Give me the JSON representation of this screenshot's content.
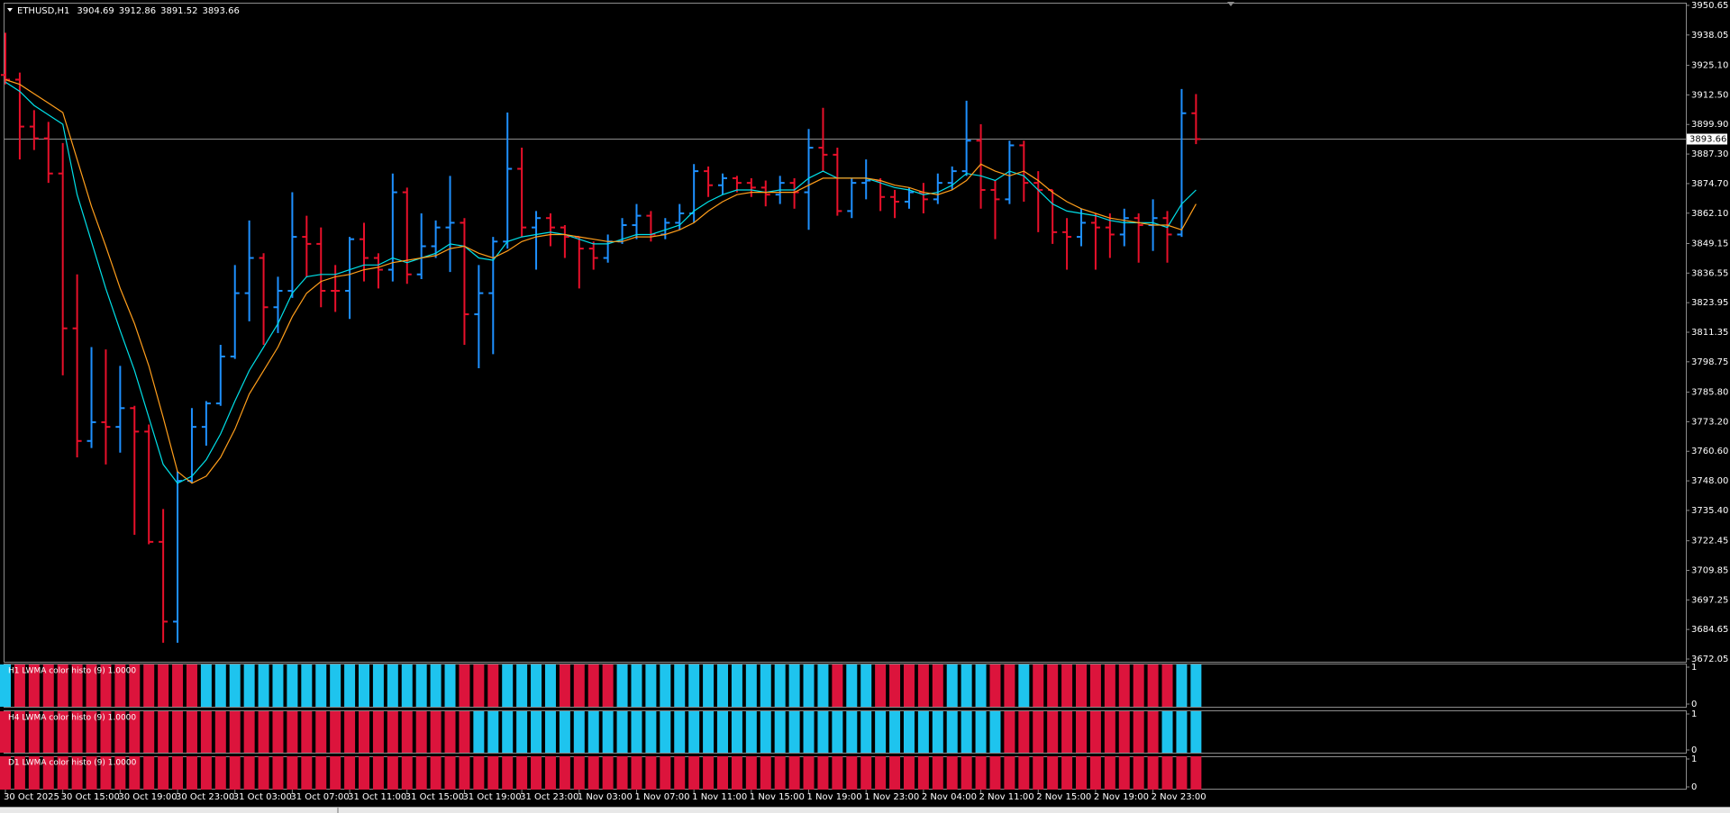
{
  "chart_data": [
    {
      "type": "ohlc",
      "title": "ETHUSD,H1",
      "categories": [
        "30 Oct 2025",
        null,
        null,
        null,
        "30 Oct 15:00",
        null,
        null,
        null,
        "30 Oct 19:00",
        null,
        null,
        null,
        "30 Oct 23:00",
        null,
        null,
        null,
        "31 Oct 03:00",
        null,
        null,
        null,
        "31 Oct 07:00",
        null,
        null,
        null,
        "31 Oct 11:00",
        null,
        null,
        null,
        "31 Oct 15:00",
        null,
        null,
        null,
        "31 Oct 19:00",
        null,
        null,
        null,
        "31 Oct 23:00",
        null,
        null,
        null,
        "1 Nov 03:00",
        null,
        null,
        null,
        "1 Nov 07:00",
        null,
        null,
        null,
        "1 Nov 11:00",
        null,
        null,
        null,
        "1 Nov 15:00",
        null,
        null,
        null,
        "1 Nov 19:00",
        null,
        null,
        null,
        "1 Nov 23:00",
        null,
        null,
        null,
        "2 Nov 04:00",
        null,
        null,
        null,
        "2 Nov 11:00",
        null,
        null,
        null,
        "2 Nov 15:00",
        null,
        null,
        null,
        "2 Nov 19:00",
        null,
        null,
        null,
        "2 Nov 23:00",
        null,
        null,
        null
      ],
      "open": [
        3921,
        3919,
        3899,
        3894,
        3879,
        3813,
        3765,
        3773,
        3771,
        3779,
        3769,
        3722,
        3688,
        3748,
        3771,
        3781,
        3801,
        3828,
        3843,
        3822,
        3829,
        3852,
        3849,
        3829,
        3829,
        3851,
        3843,
        3838,
        3871,
        3836,
        3848,
        3856,
        3858,
        3819,
        3828,
        3850,
        3881,
        3856,
        3860,
        3856,
        3852,
        3847,
        3843,
        3850,
        3857,
        3861,
        3853,
        3858,
        3862,
        3880,
        3874,
        3877,
        3875,
        3873,
        3870,
        3875,
        3871,
        3890,
        3887,
        3863,
        3875,
        3876,
        3869,
        3867,
        3871,
        3868,
        3875,
        3880,
        3893,
        3872,
        3868,
        3891,
        3875,
        3872,
        3854,
        3852,
        3858,
        3856,
        3853,
        3860,
        3857,
        3860,
        3853,
        3904.69
      ],
      "high": [
        3939,
        3922,
        3906,
        3901,
        3892,
        3836,
        3805,
        3804,
        3797,
        3780,
        3772,
        3736,
        3752,
        3779,
        3782,
        3806,
        3840,
        3859,
        3845,
        3835,
        3871,
        3861,
        3856,
        3840,
        3852,
        3858,
        3845,
        3879,
        3873,
        3862,
        3859,
        3878,
        3860,
        3840,
        3852,
        3905,
        3890,
        3863,
        3862,
        3857,
        3852,
        3850,
        3853,
        3860,
        3866,
        3863,
        3860,
        3866,
        3883,
        3882,
        3879,
        3878,
        3877,
        3876,
        3878,
        3877,
        3898,
        3907,
        3890,
        3877,
        3885,
        3877,
        3872,
        3873,
        3875,
        3879,
        3882,
        3910,
        3900,
        3876,
        3893,
        3893,
        3880,
        3872,
        3860,
        3864,
        3862,
        3862,
        3864,
        3862,
        3868,
        3863,
        3915,
        3912.86
      ],
      "low": [
        3917,
        3885,
        3889,
        3875,
        3793,
        3758,
        3762,
        3755,
        3760,
        3725,
        3721,
        3679,
        3679,
        3747,
        3763,
        3780,
        3800,
        3816,
        3806,
        3811,
        3826,
        3835,
        3822,
        3820,
        3817,
        3833,
        3830,
        3833,
        3832,
        3834,
        3843,
        3837,
        3806,
        3796,
        3802,
        3847,
        3852,
        3838,
        3848,
        3843,
        3830,
        3838,
        3841,
        3849,
        3851,
        3850,
        3851,
        3855,
        3858,
        3869,
        3870,
        3871,
        3869,
        3865,
        3866,
        3864,
        3855,
        3880,
        3861,
        3860,
        3868,
        3863,
        3860,
        3864,
        3862,
        3866,
        3872,
        3878,
        3864,
        3851,
        3866,
        3867,
        3854,
        3849,
        3838,
        3848,
        3838,
        3843,
        3848,
        3841,
        3846,
        3841,
        3852,
        3891.52
      ],
      "close": [
        3919,
        3899,
        3894,
        3879,
        3813,
        3765,
        3773,
        3771,
        3779,
        3769,
        3722,
        3688,
        3748,
        3771,
        3781,
        3801,
        3828,
        3843,
        3822,
        3829,
        3852,
        3849,
        3829,
        3829,
        3851,
        3843,
        3838,
        3871,
        3836,
        3848,
        3856,
        3858,
        3819,
        3828,
        3850,
        3881,
        3856,
        3860,
        3856,
        3852,
        3847,
        3843,
        3850,
        3857,
        3861,
        3853,
        3858,
        3862,
        3880,
        3874,
        3877,
        3875,
        3873,
        3870,
        3875,
        3871,
        3890,
        3887,
        3863,
        3875,
        3876,
        3869,
        3867,
        3871,
        3868,
        3875,
        3880,
        3893,
        3872,
        3868,
        3891,
        3875,
        3872,
        3854,
        3852,
        3858,
        3856,
        3853,
        3860,
        3857,
        3860,
        3853,
        3904.69,
        3893.66
      ],
      "up_color": "#1e90ff",
      "down_color": "#e8102a",
      "lines": [
        {
          "color": "#00e0e8",
          "values": [
            3918,
            3914,
            3908,
            3904,
            3900,
            3870,
            3850,
            3830,
            3812,
            3795,
            3775,
            3755,
            3747,
            3750,
            3757,
            3768,
            3782,
            3795,
            3805,
            3815,
            3828,
            3835,
            3836,
            3836,
            3838,
            3840,
            3840,
            3843,
            3841,
            3843,
            3845,
            3849,
            3848,
            3843,
            3842,
            3850,
            3852,
            3853,
            3854,
            3853,
            3851,
            3849,
            3849,
            3851,
            3853,
            3853,
            3855,
            3857,
            3863,
            3867,
            3870,
            3872,
            3872,
            3871,
            3872,
            3872,
            3877,
            3880,
            3877,
            3877,
            3877,
            3875,
            3873,
            3872,
            3870,
            3871,
            3874,
            3879,
            3878,
            3876,
            3880,
            3878,
            3872,
            3866,
            3863,
            3862,
            3861,
            3859,
            3858,
            3858,
            3858,
            3856,
            3866,
            3872
          ]
        },
        {
          "color": "#ff9e1b",
          "values": [
            3919,
            3917,
            3913,
            3909,
            3905,
            3885,
            3865,
            3848,
            3830,
            3815,
            3797,
            3775,
            3752,
            3747,
            3750,
            3758,
            3770,
            3785,
            3795,
            3805,
            3818,
            3828,
            3833,
            3835,
            3836,
            3838,
            3839,
            3841,
            3842,
            3843,
            3844,
            3847,
            3848,
            3845,
            3843,
            3846,
            3850,
            3852,
            3853,
            3853,
            3852,
            3851,
            3850,
            3850,
            3852,
            3852,
            3853,
            3855,
            3858,
            3863,
            3867,
            3870,
            3871,
            3871,
            3871,
            3871,
            3874,
            3877,
            3877,
            3877,
            3877,
            3876,
            3874,
            3873,
            3871,
            3870,
            3872,
            3876,
            3883,
            3880,
            3878,
            3880,
            3876,
            3871,
            3867,
            3864,
            3862,
            3860,
            3859,
            3858,
            3857,
            3857,
            3855,
            3866
          ]
        }
      ],
      "ylim": [
        3672.05,
        3950.65
      ],
      "yticks": [
        3950.65,
        3938.05,
        {
          "value": 3925.1,
          "label": "3925.10"
        },
        {
          "value": 3912.5,
          "label": "3912.50"
        },
        {
          "value": 3899.9,
          "label": "3899.90"
        },
        {
          "value": 3887.3,
          "label": "3887.30"
        },
        {
          "value": 3874.7,
          "label": "3874.70"
        },
        {
          "value": 3862.1,
          "label": "3862.10"
        },
        3849.15,
        3836.55,
        3823.95,
        3811.35,
        3798.75,
        {
          "value": 3785.8,
          "label": "3785.80"
        },
        {
          "value": 3773.2,
          "label": "3773.20"
        },
        {
          "value": 3760.6,
          "label": "3760.60"
        },
        {
          "value": 3748,
          "label": "3748.00"
        },
        {
          "value": 3735.4,
          "label": "3735.40"
        },
        3722.45,
        3709.85,
        3697.25,
        3684.65,
        3672.05
      ]
    },
    {
      "type": "colorhisto",
      "title": "H1 LWMA color histo (9) 1.0000",
      "palette": {
        "u": "#1ec4ee",
        "d": "#dc143c"
      },
      "states": [
        "u",
        "d",
        "d",
        "d",
        "d",
        "d",
        "d",
        "d",
        "d",
        "d",
        "d",
        "d",
        "d",
        "d",
        "u",
        "u",
        "u",
        "u",
        "u",
        "u",
        "u",
        "u",
        "u",
        "u",
        "u",
        "u",
        "u",
        "u",
        "u",
        "u",
        "u",
        "u",
        "d",
        "d",
        "d",
        "u",
        "u",
        "u",
        "u",
        "d",
        "d",
        "d",
        "d",
        "u",
        "u",
        "u",
        "u",
        "u",
        "u",
        "u",
        "u",
        "u",
        "u",
        "u",
        "u",
        "u",
        "u",
        "u",
        "d",
        "u",
        "u",
        "d",
        "d",
        "d",
        "d",
        "d",
        "u",
        "u",
        "u",
        "d",
        "d",
        "u",
        "d",
        "d",
        "d",
        "d",
        "d",
        "d",
        "d",
        "d",
        "d",
        "d",
        "u",
        "u"
      ],
      "values": [
        1,
        1,
        1,
        1,
        1,
        1,
        1,
        1,
        1,
        1,
        1,
        1,
        1,
        1,
        1,
        1,
        1,
        1,
        1,
        1,
        1,
        1,
        1,
        1,
        1,
        1,
        1,
        1,
        1,
        1,
        1,
        1,
        1,
        1,
        1,
        1,
        1,
        1,
        1,
        1,
        1,
        1,
        1,
        1,
        1,
        1,
        1,
        1,
        1,
        1,
        1,
        1,
        1,
        1,
        1,
        1,
        1,
        1,
        1,
        1,
        1,
        1,
        1,
        1,
        1,
        1,
        1,
        1,
        1,
        1,
        1,
        1,
        1,
        1,
        1,
        1,
        1,
        1,
        1,
        1,
        1,
        1,
        1,
        1
      ],
      "ylim": [
        0,
        1
      ],
      "yticks": [
        0,
        1
      ]
    },
    {
      "type": "colorhisto",
      "title": "H4 LWMA color histo (9) 1.0000",
      "palette": {
        "u": "#1ec4ee",
        "d": "#dc143c"
      },
      "states": [
        "d",
        "d",
        "d",
        "d",
        "d",
        "d",
        "d",
        "d",
        "d",
        "d",
        "d",
        "d",
        "d",
        "d",
        "d",
        "d",
        "d",
        "d",
        "d",
        "d",
        "d",
        "d",
        "d",
        "d",
        "d",
        "d",
        "d",
        "d",
        "d",
        "d",
        "d",
        "d",
        "d",
        "u",
        "u",
        "u",
        "u",
        "u",
        "u",
        "u",
        "u",
        "u",
        "u",
        "u",
        "u",
        "u",
        "u",
        "u",
        "u",
        "u",
        "u",
        "u",
        "u",
        "u",
        "u",
        "u",
        "u",
        "u",
        "u",
        "u",
        "u",
        "u",
        "u",
        "u",
        "u",
        "u",
        "u",
        "u",
        "u",
        "u",
        "d",
        "d",
        "d",
        "d",
        "d",
        "d",
        "d",
        "d",
        "d",
        "d",
        "d",
        "u",
        "u",
        "u"
      ],
      "values": [
        1,
        1,
        1,
        1,
        1,
        1,
        1,
        1,
        1,
        1,
        1,
        1,
        1,
        1,
        1,
        1,
        1,
        1,
        1,
        1,
        1,
        1,
        1,
        1,
        1,
        1,
        1,
        1,
        1,
        1,
        1,
        1,
        1,
        1,
        1,
        1,
        1,
        1,
        1,
        1,
        1,
        1,
        1,
        1,
        1,
        1,
        1,
        1,
        1,
        1,
        1,
        1,
        1,
        1,
        1,
        1,
        1,
        1,
        1,
        1,
        1,
        1,
        1,
        1,
        1,
        1,
        1,
        1,
        1,
        1,
        1,
        1,
        1,
        1,
        1,
        1,
        1,
        1,
        1,
        1,
        1,
        1,
        1,
        1
      ],
      "ylim": [
        0,
        1
      ],
      "yticks": [
        0,
        1
      ]
    },
    {
      "type": "colorhisto",
      "title": "D1 LWMA color histo (9) 1.0000",
      "palette": {
        "u": "#1ec4ee",
        "d": "#dc143c"
      },
      "states": [
        "d",
        "d",
        "d",
        "d",
        "d",
        "d",
        "d",
        "d",
        "d",
        "d",
        "d",
        "d",
        "d",
        "d",
        "d",
        "d",
        "d",
        "d",
        "d",
        "d",
        "d",
        "d",
        "d",
        "d",
        "d",
        "d",
        "d",
        "d",
        "d",
        "d",
        "d",
        "d",
        "d",
        "d",
        "d",
        "d",
        "d",
        "d",
        "d",
        "d",
        "d",
        "d",
        "d",
        "d",
        "d",
        "d",
        "d",
        "d",
        "d",
        "d",
        "d",
        "d",
        "d",
        "d",
        "d",
        "d",
        "d",
        "d",
        "d",
        "d",
        "d",
        "d",
        "d",
        "d",
        "d",
        "d",
        "d",
        "d",
        "d",
        "d",
        "d",
        "d",
        "d",
        "d",
        "d",
        "d",
        "d",
        "d",
        "d",
        "d",
        "d",
        "d",
        "d",
        "d"
      ],
      "values": [
        1,
        1,
        1,
        1,
        1,
        1,
        1,
        1,
        1,
        1,
        1,
        1,
        1,
        1,
        1,
        1,
        1,
        1,
        1,
        1,
        1,
        1,
        1,
        1,
        1,
        1,
        1,
        1,
        1,
        1,
        1,
        1,
        1,
        1,
        1,
        1,
        1,
        1,
        1,
        1,
        1,
        1,
        1,
        1,
        1,
        1,
        1,
        1,
        1,
        1,
        1,
        1,
        1,
        1,
        1,
        1,
        1,
        1,
        1,
        1,
        1,
        1,
        1,
        1,
        1,
        1,
        1,
        1,
        1,
        1,
        1,
        1,
        1,
        1,
        1,
        1,
        1,
        1,
        1,
        1,
        1,
        1,
        1,
        1
      ],
      "ylim": [
        0,
        1
      ],
      "yticks": [
        0,
        1
      ]
    }
  ]
}
